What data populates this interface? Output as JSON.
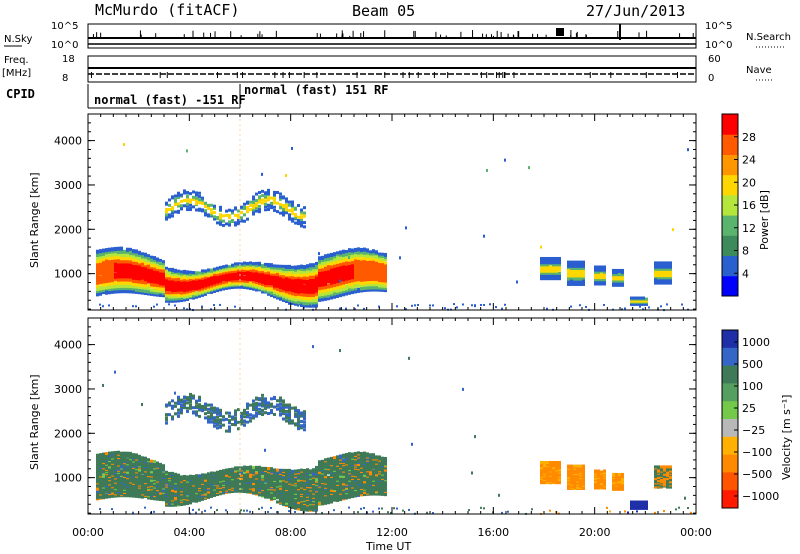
{
  "header": {
    "station": "McMurdo (fitACF)",
    "beam": "Beam 05",
    "date": "27/Jun/2013"
  },
  "status_panels": {
    "nsky_label": "N.Sky",
    "nsky_ticks": [
      "10^5",
      "10^0"
    ],
    "nsearch_label": "N.Search",
    "nsearch_ticks": [
      "10^5",
      "10^0"
    ],
    "freq_label": "Freq.",
    "freq_unit": "[MHz]",
    "freq_ticks": [
      "18",
      "8"
    ],
    "nave_label": "Nave",
    "nave_ticks": [
      "60",
      "0"
    ],
    "cpid_label": "CPID",
    "cpid_segments": [
      "normal (fast) -151 RF",
      "normal (fast) 151 RF"
    ]
  },
  "colors": {
    "power_scale": [
      "#0000ff",
      "#2a5fd0",
      "#3d8a5a",
      "#5ab46e",
      "#b4e63c",
      "#ffd700",
      "#ff9600",
      "#ff5a00",
      "#ff0000"
    ],
    "velocity_scale": [
      "#1f2fa8",
      "#3466c8",
      "#3f7a58",
      "#55a060",
      "#74c84a",
      "#b8b8b8",
      "#ffb000",
      "#ff8a00",
      "#ff5500",
      "#ff1a00"
    ]
  },
  "chart_data": [
    {
      "type": "heatmap",
      "name": "power",
      "ylabel": "Slant Range [km]",
      "yticks": [
        1000,
        2000,
        3000,
        4000
      ],
      "ylim": [
        180,
        4600
      ],
      "xticks": [
        "00:00",
        "04:00",
        "08:00",
        "12:00",
        "16:00",
        "20:00",
        "00:00"
      ],
      "xlim_hours": [
        0,
        24
      ],
      "colorbar": {
        "label": "Power [dB]",
        "ticks": [
          "4",
          "8",
          "12",
          "16",
          "20",
          "24",
          "28"
        ],
        "range": [
          0,
          32
        ]
      }
    },
    {
      "type": "heatmap",
      "name": "velocity",
      "ylabel": "Slant Range [km]",
      "yticks": [
        1000,
        2000,
        3000,
        4000
      ],
      "ylim": [
        180,
        4600
      ],
      "xticks": [
        "00:00",
        "04:00",
        "08:00",
        "12:00",
        "16:00",
        "20:00",
        "00:00"
      ],
      "xlabel": "Time UT",
      "xlim_hours": [
        0,
        24
      ],
      "colorbar": {
        "label": "Velocity [m s⁻¹]",
        "ticks": [
          "1000",
          "500",
          "100",
          "25",
          "−25",
          "−100",
          "−500",
          "−1000"
        ]
      }
    }
  ]
}
